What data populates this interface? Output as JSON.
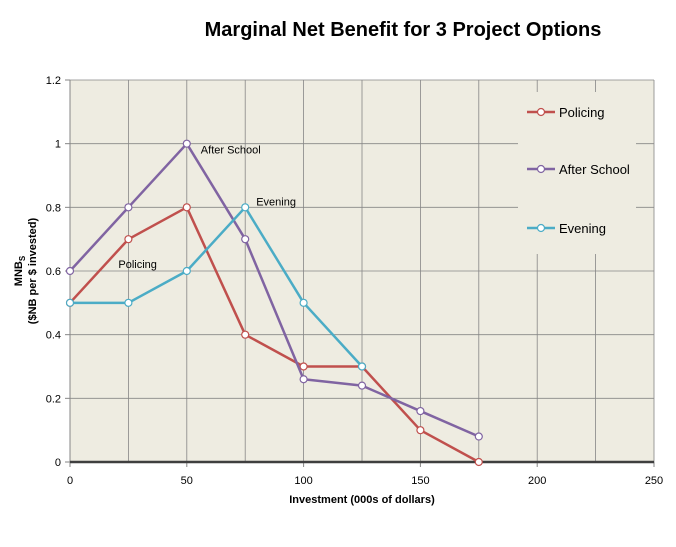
{
  "chart_data": {
    "type": "line",
    "title": "Marginal Net Benefit for 3 Project Options",
    "xlabel": "Investment (000s of dollars)",
    "ylabel_line1": "MNB",
    "ylabel_subscript": "S",
    "ylabel_line2": "($NB per $ invested)",
    "xlim": [
      0,
      250
    ],
    "ylim": [
      0,
      1.2
    ],
    "xticks": [
      0,
      50,
      100,
      150,
      200,
      250
    ],
    "yticks": [
      0,
      0.2,
      0.4,
      0.6,
      0.8,
      1,
      1.2
    ],
    "ytick_labels": [
      "0",
      "0.2",
      "0.4",
      "0.6",
      "0.8",
      "1",
      "1.2"
    ],
    "grid": true,
    "legend_position": "right",
    "series": [
      {
        "name": "Policing",
        "color": "#c0504d",
        "x": [
          0,
          25,
          50,
          75,
          100,
          125,
          150,
          175
        ],
        "y": [
          0.5,
          0.7,
          0.8,
          0.4,
          0.3,
          0.3,
          0.1,
          0.0
        ]
      },
      {
        "name": "After School",
        "color": "#8064a2",
        "x": [
          0,
          25,
          50,
          75,
          100,
          125,
          150,
          175
        ],
        "y": [
          0.6,
          0.8,
          1.0,
          0.7,
          0.26,
          0.24,
          0.16,
          0.08
        ]
      },
      {
        "name": "Evening",
        "color": "#4bacc6",
        "x": [
          0,
          25,
          50,
          75,
          100,
          125
        ],
        "y": [
          0.5,
          0.5,
          0.6,
          0.8,
          0.5,
          0.3
        ]
      }
    ],
    "annotations": [
      {
        "text": "After School",
        "x": 50,
        "y": 1.0
      },
      {
        "text": "Evening",
        "x": 75,
        "y": 0.8
      },
      {
        "text": "Policing",
        "x": 25,
        "y": 0.7
      }
    ]
  }
}
